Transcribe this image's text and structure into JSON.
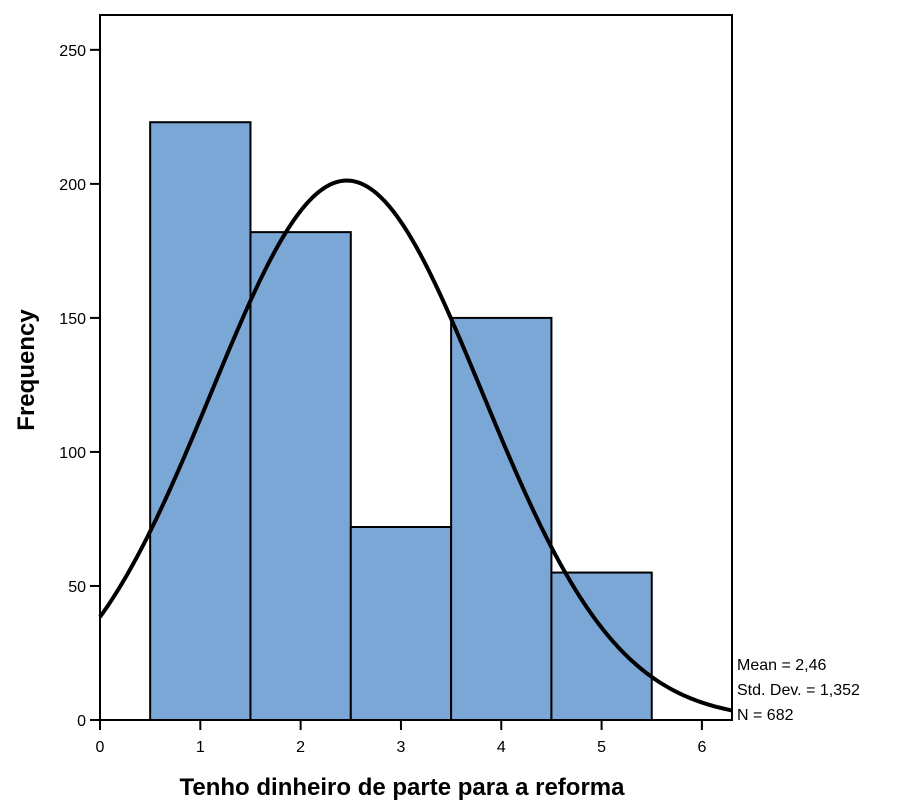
{
  "chart_data": {
    "type": "bar",
    "subtype": "histogram",
    "xlabel": "Tenho dinheiro de parte para a reforma",
    "ylabel": "Frequency",
    "xlim": [
      0,
      6.3
    ],
    "ylim": [
      0,
      263
    ],
    "x_ticks": [
      0,
      1,
      2,
      3,
      4,
      5,
      6
    ],
    "y_ticks": [
      0,
      50,
      100,
      150,
      200,
      250
    ],
    "bins": [
      {
        "x0": 0.5,
        "x1": 1.5,
        "value": 223
      },
      {
        "x0": 1.5,
        "x1": 2.5,
        "value": 182
      },
      {
        "x0": 2.5,
        "x1": 3.5,
        "value": 72
      },
      {
        "x0": 3.5,
        "x1": 4.5,
        "value": 150
      },
      {
        "x0": 4.5,
        "x1": 5.5,
        "value": 55
      }
    ],
    "normal_curve": {
      "mean": 2.46,
      "std": 1.352,
      "n": 682,
      "bin_width": 1
    },
    "bar_color": "#7ba7d6",
    "grid": false,
    "stats": {
      "mean": "Mean = 2,46",
      "std": "Std. Dev. = 1,352",
      "n": "N = 682"
    }
  }
}
